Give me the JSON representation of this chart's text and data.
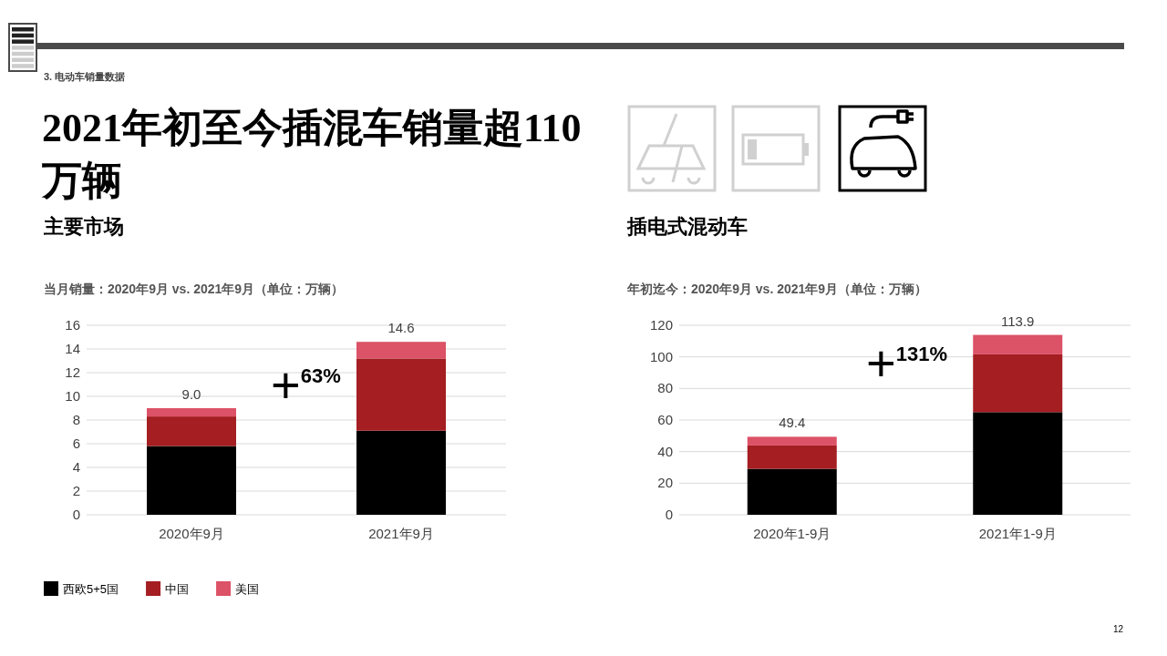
{
  "chart_data": [
    {
      "type": "bar",
      "title": "主要市场",
      "subtitle": "当月销量：2020年9月 vs. 2021年9月（单位：万辆）",
      "categories": [
        "2020年9月",
        "2021年9月"
      ],
      "stacked": true,
      "series": [
        {
          "name": "西欧5+5国",
          "color": "#000000",
          "values": [
            5.8,
            7.1
          ]
        },
        {
          "name": "中国",
          "color": "#a41e22",
          "values": [
            2.5,
            6.1
          ]
        },
        {
          "name": "美国",
          "color": "#dc5267",
          "values": [
            0.7,
            1.4
          ]
        }
      ],
      "totals": [
        "9.0",
        "14.6"
      ],
      "ylim": [
        0,
        16
      ],
      "yticks": [
        0,
        2,
        4,
        6,
        8,
        10,
        12,
        14,
        16
      ],
      "grid": "y",
      "legend": "bottom",
      "annotations": [
        "3. 电动车销量数据",
        "2021年初至今插混车销量超110万辆",
        "+63%",
        "12"
      ]
    },
    {
      "type": "bar",
      "title": "插电式混动车",
      "subtitle": "年初迄今：2020年9月 vs. 2021年9月（单位：万辆）",
      "categories": [
        "2020年1-9月",
        "2021年1-9月"
      ],
      "stacked": true,
      "series": [
        {
          "color": "#000000",
          "values": [
            29.1,
            65.0
          ]
        },
        {
          "color": "#a41e22",
          "values": [
            14.8,
            36.6
          ]
        },
        {
          "color": "#dc5267",
          "values": [
            5.5,
            12.3
          ]
        }
      ],
      "totals": [
        "49.4",
        "113.9"
      ],
      "ylim": [
        0,
        120
      ],
      "yticks": [
        0,
        20,
        40,
        60,
        80,
        100,
        120
      ],
      "grid": "y",
      "annotations": [
        "+131%"
      ]
    }
  ]
}
